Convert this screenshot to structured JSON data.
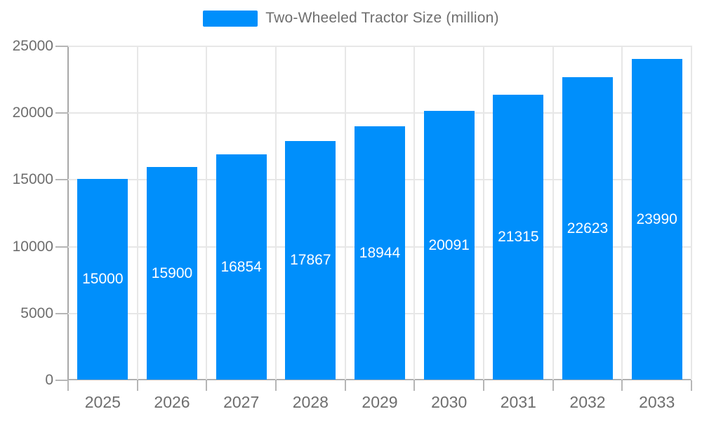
{
  "chart_data": {
    "type": "bar",
    "title": "",
    "legend": [
      {
        "label": "Two-Wheeled Tractor Size (million)"
      }
    ],
    "legend_position": "top",
    "categories": [
      "2025",
      "2026",
      "2027",
      "2028",
      "2029",
      "2030",
      "2031",
      "2032",
      "2033"
    ],
    "series": [
      {
        "name": "Two-Wheeled Tractor Size (million)",
        "values": [
          15000,
          15900,
          16854,
          17867,
          18944,
          20091,
          21315,
          22623,
          23990
        ]
      }
    ],
    "value_labels_shown": true,
    "xlabel": "",
    "ylabel": "",
    "ylim": [
      0,
      25000
    ],
    "y_ticks": [
      0,
      5000,
      10000,
      15000,
      20000,
      25000
    ],
    "grid": true,
    "colors": {
      "bar": "#008FFB",
      "bar_value_label": "#ffffff",
      "axis_text": "#6e6e6e",
      "gridline": "#e7e7e7",
      "axis_line": "#a8a8a8",
      "tick": "#b6b6b6",
      "background": "#ffffff"
    }
  }
}
